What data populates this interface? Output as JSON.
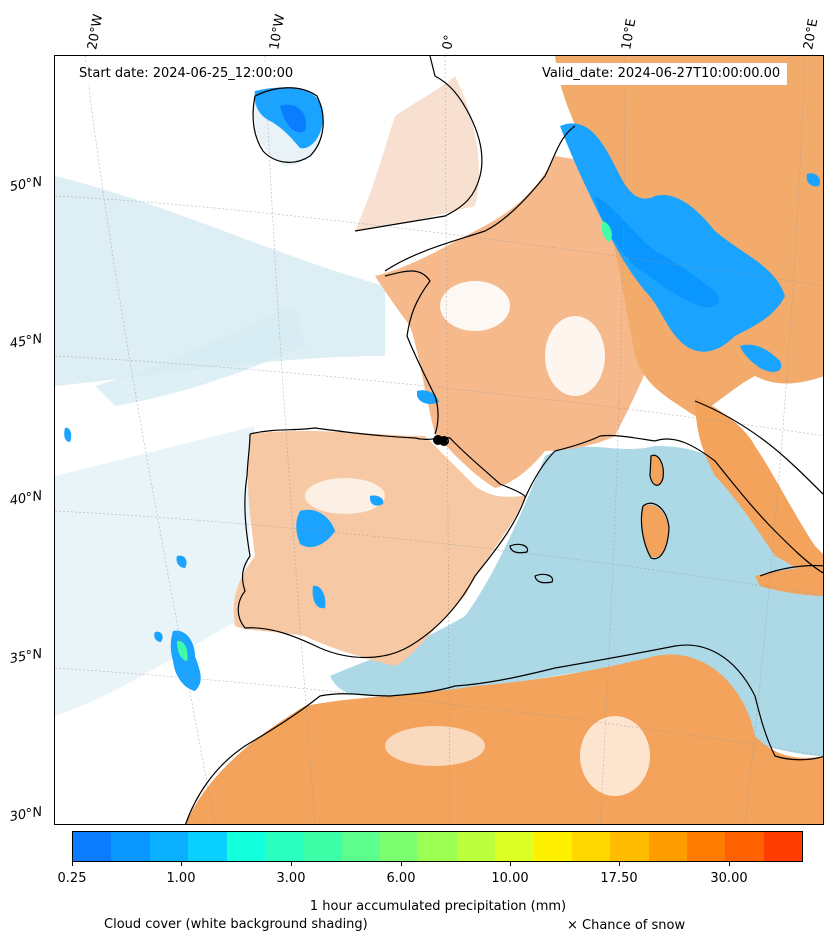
{
  "header": {
    "start_date": "Start date: 2024-06-25_12:00:00",
    "valid_date": "Valid_date: 2024-06-27T10:00:00.00"
  },
  "axes": {
    "longitude_labels": [
      "20°W",
      "10°W",
      "0°",
      "10°E",
      "20°E"
    ],
    "latitude_labels": [
      "30°N",
      "35°N",
      "40°N",
      "45°N",
      "50°N"
    ]
  },
  "colorbar": {
    "label": "1 hour accumulated precipitation (mm)",
    "tick_labels": [
      "0.25",
      "1.00",
      "3.00",
      "6.00",
      "10.00",
      "17.50",
      "30.00"
    ],
    "colors": [
      "#0a7cff",
      "#0a96ff",
      "#0ab0ff",
      "#0ad0ff",
      "#14ffdc",
      "#2affc0",
      "#3cffa8",
      "#5cff8c",
      "#7cff70",
      "#9cff54",
      "#bcff3c",
      "#dcff24",
      "#fff000",
      "#ffd800",
      "#ffbc00",
      "#ff9c00",
      "#ff7c00",
      "#ff6000",
      "#ff3c00"
    ]
  },
  "legend": {
    "cloud_cover": "Cloud cover (white background shading)",
    "snow": "× Chance of snow"
  },
  "colors": {
    "land_dry": "#f3a35c",
    "sea": "#add8e6",
    "cloud": "#ffffff",
    "coastline": "#000000"
  }
}
